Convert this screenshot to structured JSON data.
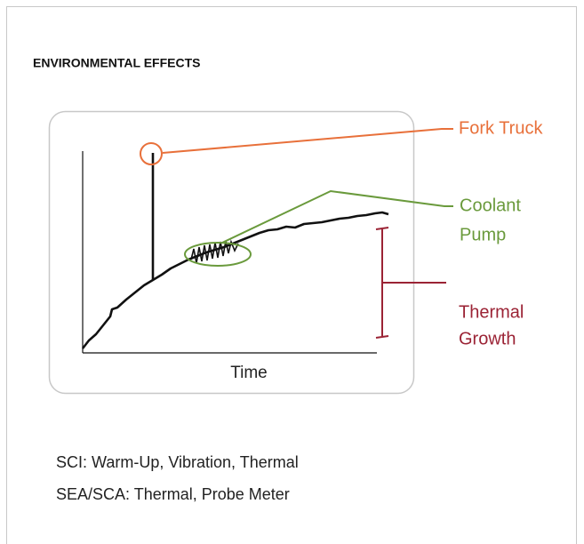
{
  "title": "ENVIRONMENTAL EFFECTS",
  "diagram": {
    "x_axis_label": "Time",
    "annotations": [
      {
        "lines": [
          "Fork Truck"
        ]
      },
      {
        "lines": [
          "Coolant",
          "Pump"
        ]
      },
      {
        "lines": [
          "Thermal",
          "Growth"
        ]
      }
    ]
  },
  "notes": [
    "SCI: Warm-Up, Vibration, Thermal",
    "SEA/SCA: Thermal, Probe Meter"
  ]
}
